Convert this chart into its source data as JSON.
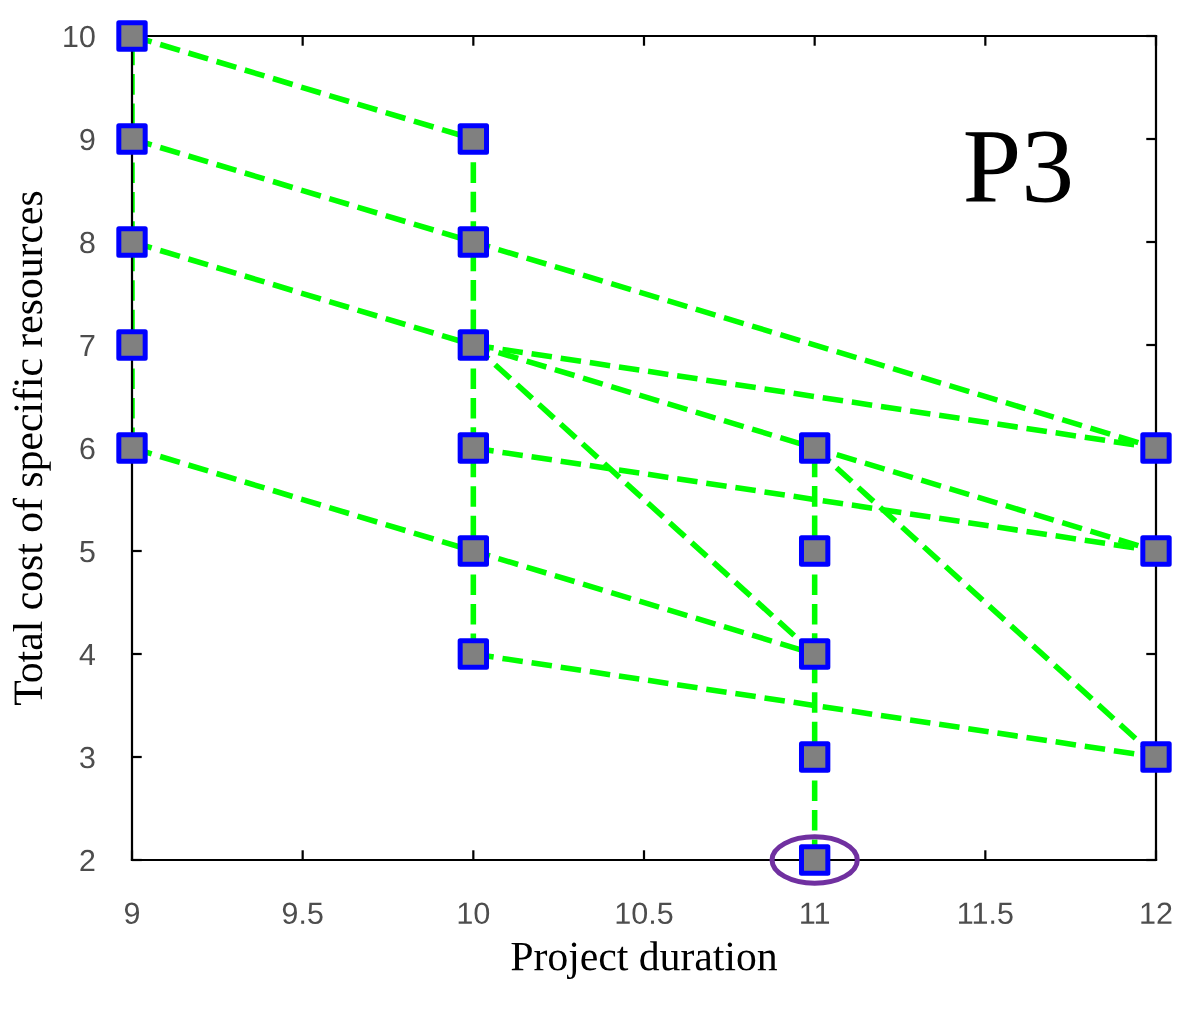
{
  "chart_data": {
    "type": "line",
    "xlabel": "Project duration",
    "ylabel": "Total cost of specific resources",
    "annotations": [
      "P3"
    ],
    "xlim": [
      9,
      12
    ],
    "xticks": [
      9,
      9.5,
      10,
      10.5,
      11,
      11.5,
      12
    ],
    "ylim": [
      2,
      10
    ],
    "yticks": [
      2,
      3,
      4,
      5,
      6,
      7,
      8,
      9,
      10
    ],
    "grid": false,
    "line_style": "dashed",
    "series": [
      {
        "color": "#00ff00",
        "x": [
          9,
          9
        ],
        "values": [
          6,
          10
        ]
      },
      {
        "color": "#00ff00",
        "x": [
          10,
          10
        ],
        "values": [
          4,
          9
        ]
      },
      {
        "color": "#00ff00",
        "x": [
          11,
          11
        ],
        "values": [
          2,
          6
        ]
      },
      {
        "color": "#00ff00",
        "x": [
          9,
          10
        ],
        "values": [
          10,
          9
        ]
      },
      {
        "color": "#00ff00",
        "x": [
          9,
          10,
          12
        ],
        "values": [
          9,
          8,
          6
        ]
      },
      {
        "color": "#00ff00",
        "x": [
          9,
          10,
          11,
          12
        ],
        "values": [
          8,
          7,
          6,
          5
        ]
      },
      {
        "color": "#00ff00",
        "x": [
          10,
          12
        ],
        "values": [
          7,
          6
        ]
      },
      {
        "color": "#00ff00",
        "x": [
          10,
          11
        ],
        "values": [
          7,
          4
        ]
      },
      {
        "color": "#00ff00",
        "x": [
          9,
          10,
          11
        ],
        "values": [
          6,
          5,
          4
        ]
      },
      {
        "color": "#00ff00",
        "x": [
          10,
          12
        ],
        "values": [
          6,
          5
        ]
      },
      {
        "color": "#00ff00",
        "x": [
          11,
          12
        ],
        "values": [
          6,
          3
        ]
      },
      {
        "color": "#00ff00",
        "x": [
          10,
          12
        ],
        "values": [
          4,
          3
        ]
      },
      {
        "type": "scatter",
        "marker": "square",
        "color": "#808080",
        "x": [
          9,
          9,
          9,
          9,
          9,
          10,
          10,
          10,
          10,
          10,
          10,
          11,
          11,
          11,
          11,
          11,
          12,
          12,
          12
        ],
        "values": [
          6,
          7,
          8,
          9,
          10,
          4,
          5,
          6,
          7,
          8,
          9,
          2,
          3,
          4,
          5,
          6,
          3,
          5,
          6
        ]
      }
    ]
  }
}
